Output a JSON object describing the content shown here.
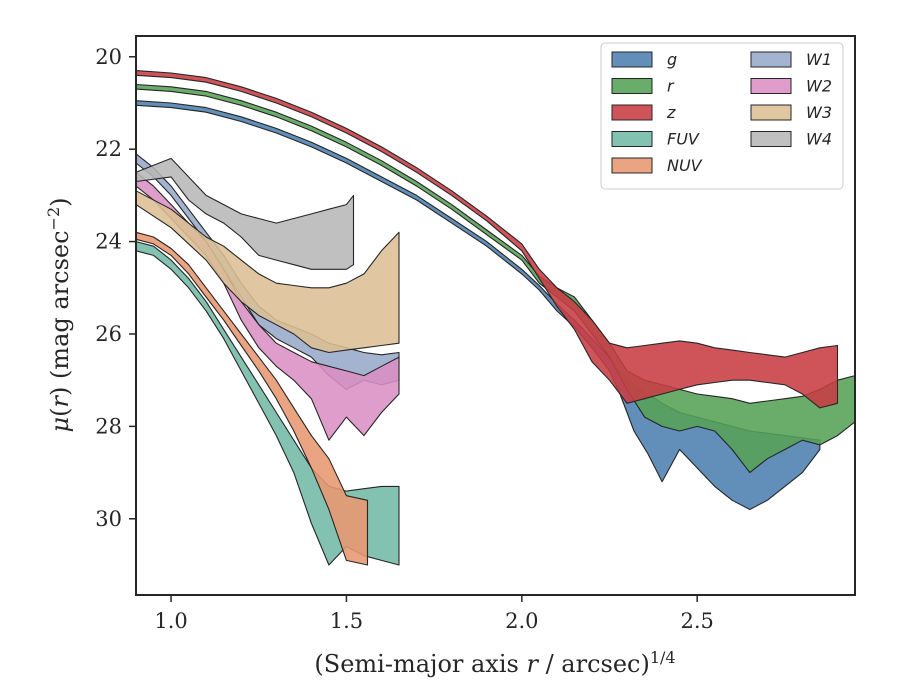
{
  "chart_data": {
    "type": "area",
    "xlabel": {
      "base": "(Semi-major axis ",
      "var": "r",
      "mid": " / arcsec)",
      "sup": "1/4"
    },
    "ylabel": {
      "mu": "μ",
      "open": "(",
      "var": "r",
      "rest": ") (mag arcsec",
      "sup": "−2",
      "close": ")"
    },
    "xlim": [
      0.9,
      2.95
    ],
    "ylim": [
      31.65,
      19.55
    ],
    "y_inverted": true,
    "xticks": [
      1.0,
      1.5,
      2.0,
      2.5
    ],
    "xtick_labels": [
      "1.0",
      "1.5",
      "2.0",
      "2.5"
    ],
    "yticks": [
      20,
      22,
      24,
      26,
      28,
      30
    ],
    "ytick_labels": [
      "20",
      "22",
      "24",
      "26",
      "28",
      "30"
    ],
    "grid": false,
    "legend_placement": "top-right",
    "legend_columns": 2,
    "series": [
      {
        "name": "g",
        "color": "#4c7eb0",
        "x": [
          0.9,
          1.0,
          1.1,
          1.2,
          1.3,
          1.4,
          1.5,
          1.6,
          1.7,
          1.8,
          1.9,
          2.0,
          2.05,
          2.1,
          2.15,
          2.2,
          2.25,
          2.28,
          2.32,
          2.36,
          2.4,
          2.45,
          2.5,
          2.55,
          2.6,
          2.65,
          2.7,
          2.75,
          2.8,
          2.85
        ],
        "y_bright": [
          20.95,
          21.0,
          21.1,
          21.3,
          21.55,
          21.85,
          22.2,
          22.6,
          23.0,
          23.5,
          24.0,
          24.6,
          24.95,
          25.35,
          25.7,
          26.1,
          26.5,
          26.8,
          27.1,
          27.3,
          27.5,
          27.7,
          27.8,
          27.9,
          28.0,
          28.1,
          28.15,
          28.2,
          28.25,
          28.3
        ],
        "y_faint": [
          21.05,
          21.1,
          21.2,
          21.4,
          21.65,
          21.95,
          22.3,
          22.7,
          23.1,
          23.6,
          24.1,
          24.7,
          25.05,
          25.5,
          25.85,
          26.3,
          26.8,
          27.3,
          28.1,
          28.6,
          29.2,
          28.5,
          28.9,
          29.3,
          29.6,
          29.8,
          29.6,
          29.3,
          29.0,
          28.5
        ]
      },
      {
        "name": "r",
        "color": "#55a255",
        "x": [
          0.9,
          1.0,
          1.1,
          1.2,
          1.3,
          1.4,
          1.5,
          1.6,
          1.7,
          1.8,
          1.9,
          2.0,
          2.05,
          2.1,
          2.15,
          2.2,
          2.25,
          2.3,
          2.35,
          2.4,
          2.45,
          2.5,
          2.55,
          2.6,
          2.65,
          2.7,
          2.75,
          2.8,
          2.85,
          2.9,
          2.95
        ],
        "y_bright": [
          20.6,
          20.65,
          20.75,
          20.95,
          21.2,
          21.5,
          21.85,
          22.25,
          22.7,
          23.2,
          23.75,
          24.3,
          24.75,
          25.0,
          25.2,
          25.7,
          26.2,
          26.8,
          27.0,
          27.1,
          27.2,
          27.3,
          27.35,
          27.4,
          27.5,
          27.45,
          27.4,
          27.35,
          27.2,
          27.0,
          26.9
        ],
        "y_faint": [
          20.7,
          20.75,
          20.85,
          21.05,
          21.3,
          21.6,
          21.95,
          22.35,
          22.8,
          23.3,
          23.85,
          24.4,
          24.9,
          25.2,
          25.5,
          26.0,
          26.5,
          27.2,
          27.8,
          28.0,
          28.1,
          28.0,
          28.1,
          28.5,
          29.0,
          28.7,
          28.5,
          28.3,
          28.4,
          28.2,
          27.9
        ]
      },
      {
        "name": "z",
        "color": "#c83c43",
        "x": [
          0.9,
          1.0,
          1.1,
          1.2,
          1.3,
          1.4,
          1.5,
          1.6,
          1.7,
          1.8,
          1.9,
          2.0,
          2.05,
          2.1,
          2.15,
          2.2,
          2.25,
          2.3,
          2.35,
          2.4,
          2.45,
          2.5,
          2.55,
          2.6,
          2.65,
          2.7,
          2.75,
          2.8,
          2.85,
          2.9
        ],
        "y_bright": [
          20.3,
          20.35,
          20.45,
          20.65,
          20.9,
          21.2,
          21.55,
          21.95,
          22.4,
          22.9,
          23.45,
          24.05,
          24.6,
          25.0,
          25.3,
          25.7,
          26.2,
          26.3,
          26.25,
          26.2,
          26.15,
          26.2,
          26.3,
          26.35,
          26.4,
          26.45,
          26.5,
          26.4,
          26.3,
          26.25
        ],
        "y_faint": [
          20.4,
          20.45,
          20.55,
          20.75,
          21.0,
          21.3,
          21.65,
          22.05,
          22.5,
          23.0,
          23.55,
          24.2,
          24.8,
          25.4,
          25.9,
          26.6,
          27.0,
          27.5,
          27.4,
          27.3,
          27.2,
          27.1,
          27.05,
          27.0,
          27.0,
          27.05,
          27.1,
          27.3,
          27.6,
          27.5
        ]
      },
      {
        "name": "FUV",
        "color": "#72b9a5",
        "x": [
          0.9,
          0.95,
          1.0,
          1.05,
          1.1,
          1.15,
          1.2,
          1.25,
          1.3,
          1.35,
          1.4,
          1.45,
          1.5,
          1.55,
          1.6,
          1.65
        ],
        "y_bright": [
          24.0,
          24.1,
          24.4,
          24.8,
          25.3,
          25.9,
          26.5,
          27.1,
          27.7,
          28.3,
          28.9,
          29.3,
          29.4,
          29.35,
          29.3,
          29.3
        ],
        "y_faint": [
          24.2,
          24.3,
          24.6,
          25.0,
          25.5,
          26.1,
          26.8,
          27.5,
          28.2,
          29.0,
          30.1,
          31.0,
          30.6,
          30.8,
          30.9,
          31.0
        ]
      },
      {
        "name": "NUV",
        "color": "#e8976f",
        "x": [
          0.9,
          0.95,
          1.0,
          1.05,
          1.1,
          1.15,
          1.2,
          1.25,
          1.3,
          1.35,
          1.4,
          1.45,
          1.5,
          1.56
        ],
        "y_bright": [
          23.8,
          23.9,
          24.15,
          24.5,
          25.0,
          25.5,
          26.0,
          26.5,
          27.0,
          27.6,
          28.2,
          28.7,
          29.5,
          29.6
        ],
        "y_faint": [
          23.95,
          24.05,
          24.3,
          24.7,
          25.2,
          25.7,
          26.25,
          26.8,
          27.4,
          28.1,
          28.9,
          29.8,
          30.9,
          31.0
        ]
      },
      {
        "name": "W1",
        "color": "#97a8c8",
        "x": [
          0.9,
          0.95,
          1.0,
          1.05,
          1.1,
          1.15,
          1.2,
          1.25,
          1.3,
          1.35,
          1.4,
          1.45,
          1.5,
          1.55,
          1.6,
          1.65
        ],
        "y_bright": [
          22.1,
          22.4,
          22.8,
          23.3,
          23.8,
          24.3,
          24.9,
          25.4,
          25.7,
          25.85,
          26.0,
          26.2,
          26.3,
          26.4,
          26.45,
          26.4
        ],
        "y_faint": [
          22.3,
          22.6,
          23.0,
          23.5,
          24.0,
          24.6,
          25.2,
          25.8,
          26.1,
          26.3,
          26.5,
          26.9,
          27.2,
          27.0,
          27.1,
          27.0
        ]
      },
      {
        "name": "W2",
        "color": "#d98fc4",
        "x": [
          0.9,
          0.95,
          1.0,
          1.05,
          1.1,
          1.15,
          1.2,
          1.25,
          1.3,
          1.35,
          1.4,
          1.45,
          1.5,
          1.55,
          1.6,
          1.65
        ],
        "y_bright": [
          22.5,
          22.8,
          23.2,
          23.6,
          24.0,
          24.6,
          25.3,
          25.8,
          26.2,
          26.4,
          26.6,
          26.7,
          26.8,
          26.9,
          26.7,
          26.5
        ],
        "y_faint": [
          22.8,
          23.1,
          23.5,
          23.9,
          24.3,
          24.9,
          25.7,
          26.3,
          26.7,
          27.0,
          27.4,
          28.3,
          27.8,
          28.2,
          27.7,
          27.3
        ]
      },
      {
        "name": "W3",
        "color": "#dcbf94",
        "x": [
          0.9,
          1.0,
          1.1,
          1.15,
          1.2,
          1.25,
          1.3,
          1.35,
          1.4,
          1.45,
          1.5,
          1.55,
          1.6,
          1.65
        ],
        "y_bright": [
          22.9,
          23.3,
          23.9,
          24.1,
          24.4,
          24.7,
          24.9,
          24.95,
          25.0,
          25.0,
          24.9,
          24.7,
          24.2,
          23.8
        ],
        "y_faint": [
          23.2,
          23.7,
          24.4,
          24.9,
          25.3,
          25.6,
          25.8,
          26.0,
          26.3,
          26.4,
          26.35,
          26.3,
          26.25,
          26.2
        ]
      },
      {
        "name": "W4",
        "color": "#b7b7b7",
        "x": [
          0.9,
          1.0,
          1.05,
          1.1,
          1.15,
          1.2,
          1.25,
          1.3,
          1.35,
          1.4,
          1.45,
          1.5,
          1.52
        ],
        "y_bright": [
          22.5,
          22.2,
          22.6,
          23.0,
          23.2,
          23.4,
          23.5,
          23.6,
          23.5,
          23.4,
          23.3,
          23.2,
          23.0
        ],
        "y_faint": [
          22.7,
          22.6,
          23.1,
          23.4,
          23.6,
          23.9,
          24.3,
          24.4,
          24.5,
          24.6,
          24.6,
          24.6,
          24.5
        ]
      }
    ]
  }
}
